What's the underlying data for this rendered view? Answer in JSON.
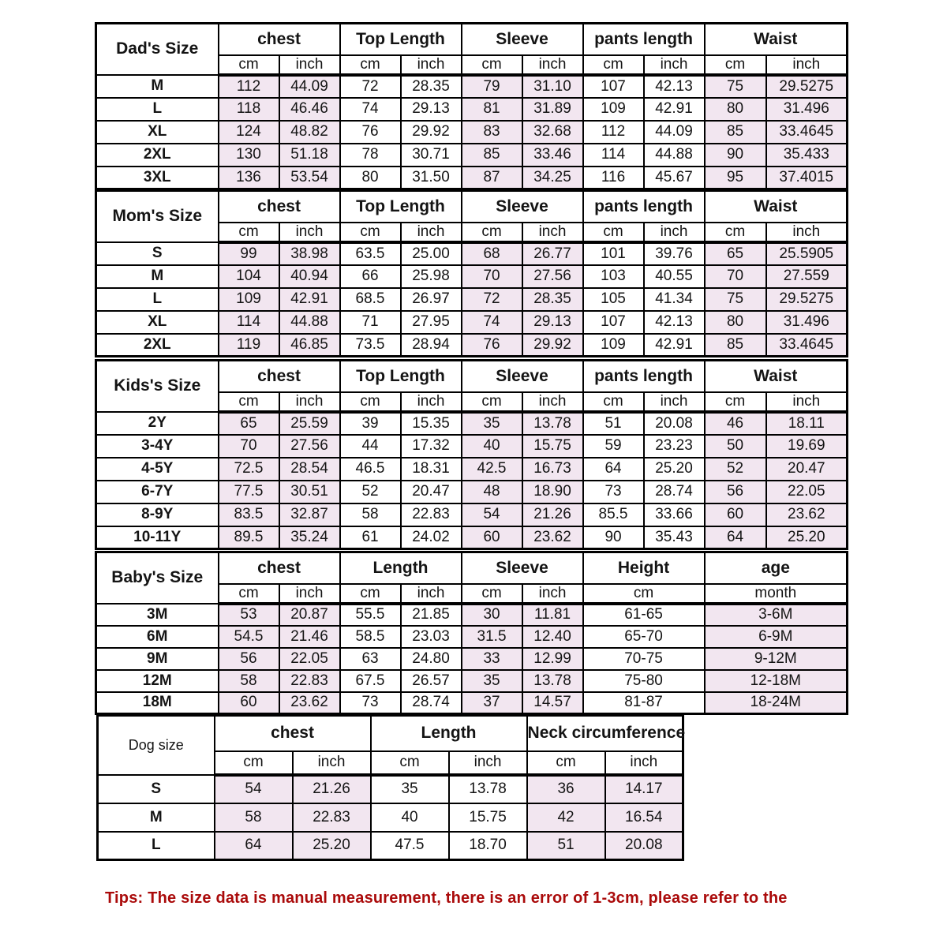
{
  "page": {
    "background": "#ffffff",
    "shade_color": "#f2e6f0",
    "border_color": "#000000",
    "tips": {
      "text": "Tips: The size data is manual measurement, there is an error of 1-3cm, please refer to the",
      "color": "#aa0a0a"
    }
  },
  "tables": [
    {
      "id": "dads-size",
      "label": "Dad's Size",
      "label_bold": true,
      "groups": [
        {
          "label": "chest",
          "cols": 2,
          "units": [
            "cm",
            "inch"
          ],
          "shaded": true
        },
        {
          "label": "Top Length",
          "cols": 2,
          "units": [
            "cm",
            "inch"
          ],
          "shaded": false
        },
        {
          "label": "Sleeve",
          "cols": 2,
          "units": [
            "cm",
            "inch"
          ],
          "shaded": true
        },
        {
          "label": "pants length",
          "cols": 2,
          "units": [
            "cm",
            "inch"
          ],
          "shaded": false
        },
        {
          "label": "Waist",
          "cols": 2,
          "units": [
            "cm",
            "inch"
          ],
          "shaded": true
        }
      ],
      "rows": [
        {
          "size": "M",
          "values": [
            [
              "112",
              "44.09"
            ],
            [
              "72",
              "28.35"
            ],
            [
              "79",
              "31.10"
            ],
            [
              "107",
              "42.13"
            ],
            [
              "75",
              "29.5275"
            ]
          ]
        },
        {
          "size": "L",
          "values": [
            [
              "118",
              "46.46"
            ],
            [
              "74",
              "29.13"
            ],
            [
              "81",
              "31.89"
            ],
            [
              "109",
              "42.91"
            ],
            [
              "80",
              "31.496"
            ]
          ]
        },
        {
          "size": "XL",
          "values": [
            [
              "124",
              "48.82"
            ],
            [
              "76",
              "29.92"
            ],
            [
              "83",
              "32.68"
            ],
            [
              "112",
              "44.09"
            ],
            [
              "85",
              "33.4645"
            ]
          ]
        },
        {
          "size": "2XL",
          "values": [
            [
              "130",
              "51.18"
            ],
            [
              "78",
              "30.71"
            ],
            [
              "85",
              "33.46"
            ],
            [
              "114",
              "44.88"
            ],
            [
              "90",
              "35.433"
            ]
          ]
        },
        {
          "size": "3XL",
          "values": [
            [
              "136",
              "53.54"
            ],
            [
              "80",
              "31.50"
            ],
            [
              "87",
              "34.25"
            ],
            [
              "116",
              "45.67"
            ],
            [
              "95",
              "37.4015"
            ]
          ]
        }
      ]
    },
    {
      "id": "moms-size",
      "label": "Mom's Size",
      "label_bold": true,
      "groups": [
        {
          "label": "chest",
          "cols": 2,
          "units": [
            "cm",
            "inch"
          ],
          "shaded": true
        },
        {
          "label": "Top Length",
          "cols": 2,
          "units": [
            "cm",
            "inch"
          ],
          "shaded": false
        },
        {
          "label": "Sleeve",
          "cols": 2,
          "units": [
            "cm",
            "inch"
          ],
          "shaded": true
        },
        {
          "label": "pants length",
          "cols": 2,
          "units": [
            "cm",
            "inch"
          ],
          "shaded": false
        },
        {
          "label": "Waist",
          "cols": 2,
          "units": [
            "cm",
            "inch"
          ],
          "shaded": true
        }
      ],
      "rows": [
        {
          "size": "S",
          "values": [
            [
              "99",
              "38.98"
            ],
            [
              "63.5",
              "25.00"
            ],
            [
              "68",
              "26.77"
            ],
            [
              "101",
              "39.76"
            ],
            [
              "65",
              "25.5905"
            ]
          ]
        },
        {
          "size": "M",
          "values": [
            [
              "104",
              "40.94"
            ],
            [
              "66",
              "25.98"
            ],
            [
              "70",
              "27.56"
            ],
            [
              "103",
              "40.55"
            ],
            [
              "70",
              "27.559"
            ]
          ]
        },
        {
          "size": "L",
          "values": [
            [
              "109",
              "42.91"
            ],
            [
              "68.5",
              "26.97"
            ],
            [
              "72",
              "28.35"
            ],
            [
              "105",
              "41.34"
            ],
            [
              "75",
              "29.5275"
            ]
          ]
        },
        {
          "size": "XL",
          "values": [
            [
              "114",
              "44.88"
            ],
            [
              "71",
              "27.95"
            ],
            [
              "74",
              "29.13"
            ],
            [
              "107",
              "42.13"
            ],
            [
              "80",
              "31.496"
            ]
          ]
        },
        {
          "size": "2XL",
          "values": [
            [
              "119",
              "46.85"
            ],
            [
              "73.5",
              "28.94"
            ],
            [
              "76",
              "29.92"
            ],
            [
              "109",
              "42.91"
            ],
            [
              "85",
              "33.4645"
            ]
          ]
        }
      ]
    },
    {
      "id": "kids-size",
      "label": "Kids's Size",
      "label_bold": true,
      "groups": [
        {
          "label": "chest",
          "cols": 2,
          "units": [
            "cm",
            "inch"
          ],
          "shaded": true
        },
        {
          "label": "Top Length",
          "cols": 2,
          "units": [
            "cm",
            "inch"
          ],
          "shaded": false
        },
        {
          "label": "Sleeve",
          "cols": 2,
          "units": [
            "cm",
            "inch"
          ],
          "shaded": true
        },
        {
          "label": "pants length",
          "cols": 2,
          "units": [
            "cm",
            "inch"
          ],
          "shaded": false
        },
        {
          "label": "Waist",
          "cols": 2,
          "units": [
            "cm",
            "inch"
          ],
          "shaded": true
        }
      ],
      "rows": [
        {
          "size": "2Y",
          "values": [
            [
              "65",
              "25.59"
            ],
            [
              "39",
              "15.35"
            ],
            [
              "35",
              "13.78"
            ],
            [
              "51",
              "20.08"
            ],
            [
              "46",
              "18.11"
            ]
          ]
        },
        {
          "size": "3-4Y",
          "values": [
            [
              "70",
              "27.56"
            ],
            [
              "44",
              "17.32"
            ],
            [
              "40",
              "15.75"
            ],
            [
              "59",
              "23.23"
            ],
            [
              "50",
              "19.69"
            ]
          ]
        },
        {
          "size": "4-5Y",
          "values": [
            [
              "72.5",
              "28.54"
            ],
            [
              "46.5",
              "18.31"
            ],
            [
              "42.5",
              "16.73"
            ],
            [
              "64",
              "25.20"
            ],
            [
              "52",
              "20.47"
            ]
          ]
        },
        {
          "size": "6-7Y",
          "values": [
            [
              "77.5",
              "30.51"
            ],
            [
              "52",
              "20.47"
            ],
            [
              "48",
              "18.90"
            ],
            [
              "73",
              "28.74"
            ],
            [
              "56",
              "22.05"
            ]
          ]
        },
        {
          "size": "8-9Y",
          "values": [
            [
              "83.5",
              "32.87"
            ],
            [
              "58",
              "22.83"
            ],
            [
              "54",
              "21.26"
            ],
            [
              "85.5",
              "33.66"
            ],
            [
              "60",
              "23.62"
            ]
          ]
        },
        {
          "size": "10-11Y",
          "values": [
            [
              "89.5",
              "35.24"
            ],
            [
              "61",
              "24.02"
            ],
            [
              "60",
              "23.62"
            ],
            [
              "90",
              "35.43"
            ],
            [
              "64",
              "25.20"
            ]
          ]
        }
      ]
    },
    {
      "id": "babys-size",
      "label": "Baby's Size",
      "label_bold": true,
      "groups": [
        {
          "label": "chest",
          "cols": 2,
          "units": [
            "cm",
            "inch"
          ],
          "shaded": true
        },
        {
          "label": "Length",
          "cols": 2,
          "units": [
            "cm",
            "inch"
          ],
          "shaded": false
        },
        {
          "label": "Sleeve",
          "cols": 2,
          "units": [
            "cm",
            "inch"
          ],
          "shaded": true
        },
        {
          "label": "Height",
          "cols": 2,
          "units": [
            "cm"
          ],
          "shaded": false
        },
        {
          "label": "age",
          "cols": 2,
          "units": [
            "month"
          ],
          "shaded": true
        }
      ],
      "rows": [
        {
          "size": "3M",
          "values": [
            [
              "53",
              "20.87"
            ],
            [
              "55.5",
              "21.85"
            ],
            [
              "30",
              "11.81"
            ],
            [
              "61-65"
            ],
            [
              "3-6M"
            ]
          ]
        },
        {
          "size": "6M",
          "values": [
            [
              "54.5",
              "21.46"
            ],
            [
              "58.5",
              "23.03"
            ],
            [
              "31.5",
              "12.40"
            ],
            [
              "65-70"
            ],
            [
              "6-9M"
            ]
          ]
        },
        {
          "size": "9M",
          "values": [
            [
              "56",
              "22.05"
            ],
            [
              "63",
              "24.80"
            ],
            [
              "33",
              "12.99"
            ],
            [
              "70-75"
            ],
            [
              "9-12M"
            ]
          ]
        },
        {
          "size": "12M",
          "values": [
            [
              "58",
              "22.83"
            ],
            [
              "67.5",
              "26.57"
            ],
            [
              "35",
              "13.78"
            ],
            [
              "75-80"
            ],
            [
              "12-18M"
            ]
          ]
        },
        {
          "size": "18M",
          "values": [
            [
              "60",
              "23.62"
            ],
            [
              "73",
              "28.74"
            ],
            [
              "37",
              "14.57"
            ],
            [
              "81-87"
            ],
            [
              "18-24M"
            ]
          ]
        }
      ]
    },
    {
      "id": "dog-size",
      "label": "Dog size",
      "label_bold": false,
      "groups": [
        {
          "label": "chest",
          "cols": 2,
          "units": [
            "cm",
            "inch"
          ],
          "shaded": true
        },
        {
          "label": "Length",
          "cols": 2,
          "units": [
            "cm",
            "inch"
          ],
          "shaded": false
        },
        {
          "label": "Neck circumference",
          "cols": 2,
          "units": [
            "cm",
            "inch"
          ],
          "shaded": true
        }
      ],
      "rows": [
        {
          "size": "S",
          "values": [
            [
              "54",
              "21.26"
            ],
            [
              "35",
              "13.78"
            ],
            [
              "36",
              "14.17"
            ]
          ]
        },
        {
          "size": "M",
          "values": [
            [
              "58",
              "22.83"
            ],
            [
              "40",
              "15.75"
            ],
            [
              "42",
              "16.54"
            ]
          ]
        },
        {
          "size": "L",
          "values": [
            [
              "64",
              "25.20"
            ],
            [
              "47.5",
              "18.70"
            ],
            [
              "51",
              "20.08"
            ]
          ]
        }
      ]
    }
  ]
}
